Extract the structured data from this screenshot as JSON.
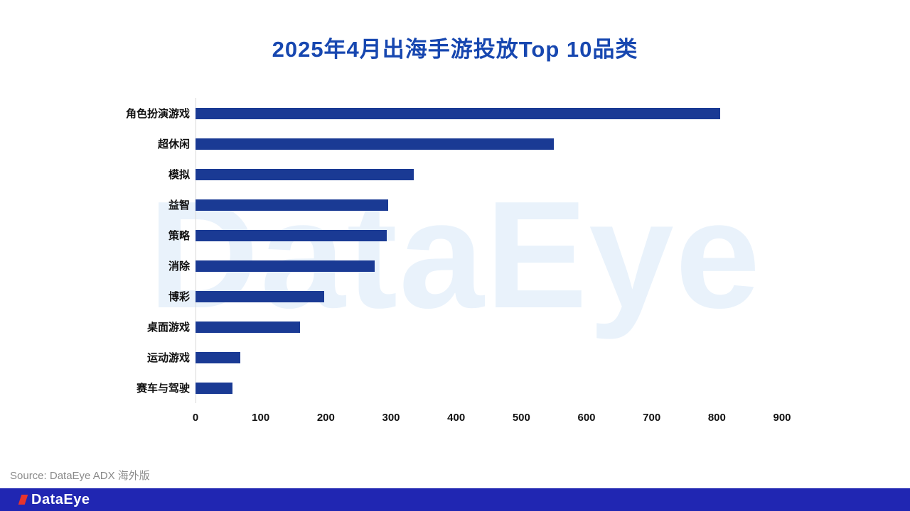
{
  "title": {
    "text": "2025年4月出海手游投放Top 10品类",
    "color": "#1747b0"
  },
  "watermark": "DataEye",
  "source_note": "Source: DataEye ADX 海外版",
  "footer": {
    "logo_text": "DataEye",
    "bar_color": "#2026b2",
    "logo_mark_color": "#e8342c"
  },
  "chart_data": {
    "type": "bar",
    "orientation": "horizontal",
    "title": "2025年4月出海手游投放Top 10品类",
    "categories": [
      "角色扮演游戏",
      "超休闲",
      "模拟",
      "益智",
      "策略",
      "消除",
      "博彩",
      "桌面游戏",
      "运动游戏",
      "赛车与驾驶"
    ],
    "values": [
      805,
      550,
      335,
      296,
      293,
      275,
      197,
      160,
      69,
      57
    ],
    "xlabel": "",
    "ylabel": "",
    "xlim": [
      0,
      900
    ],
    "x_ticks": [
      0,
      100,
      200,
      300,
      400,
      500,
      600,
      700,
      800,
      900
    ],
    "bar_color": "#1a3a94",
    "grid": false,
    "legend": false
  }
}
